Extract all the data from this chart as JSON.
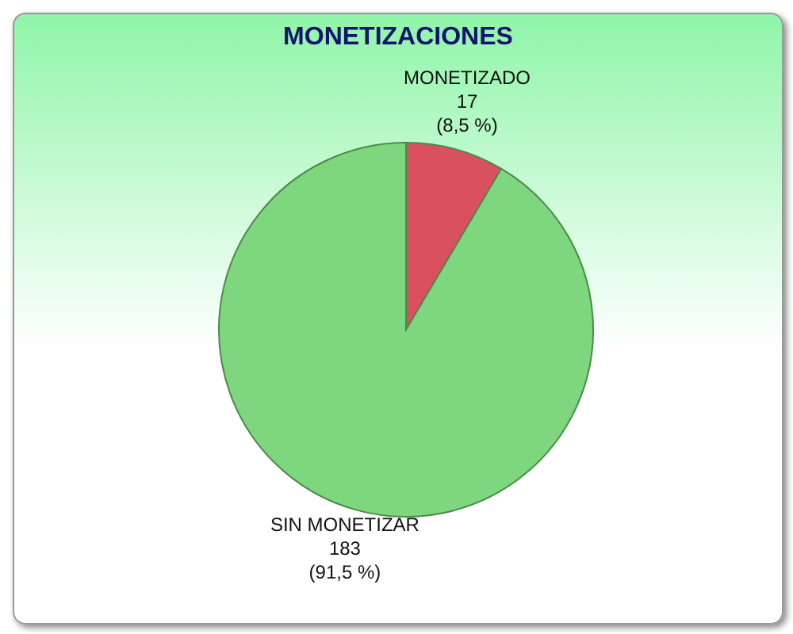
{
  "chart_data": {
    "type": "pie",
    "title": "MONETIZACIONES",
    "categories": [
      "MONETIZADO",
      "SIN MONETIZAR"
    ],
    "values": [
      17,
      183
    ],
    "colors": [
      "#d9505f",
      "#7ed67e"
    ],
    "value_labels": [
      "17 (8,5 %)",
      "183 (91,5 %)"
    ],
    "legend": false
  }
}
